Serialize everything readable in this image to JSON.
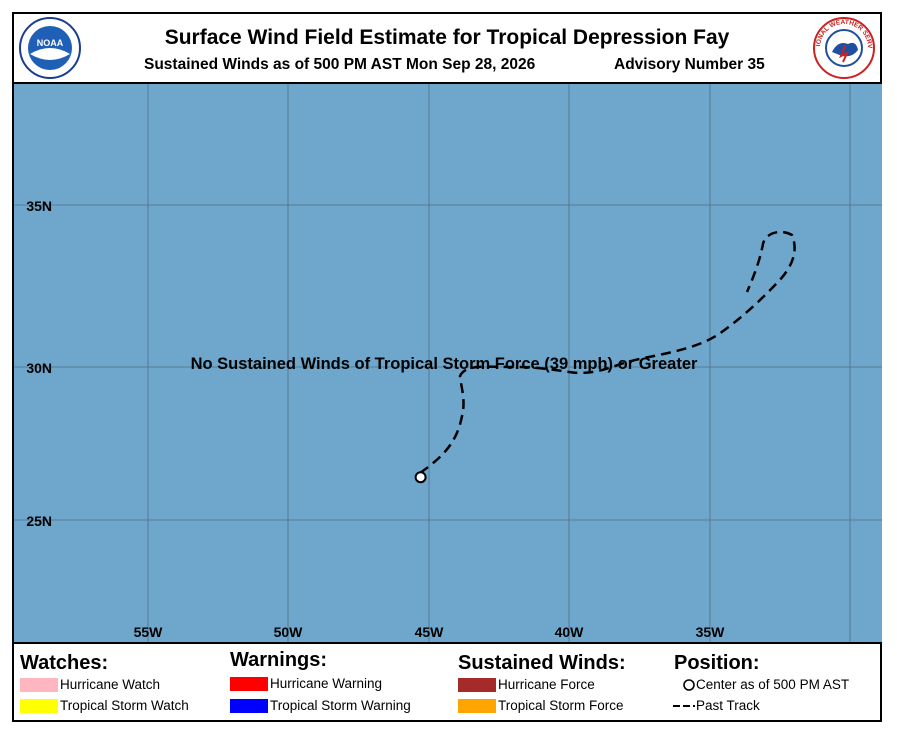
{
  "header": {
    "title": "Surface Wind Field Estimate for Tropical Depression Fay",
    "subtitle": "Sustained Winds as of 500 PM AST Mon Sep 28, 2026",
    "advisory": "Advisory Number 35",
    "noaa_logo_text": "NOAA",
    "nws_logo_text": "NATIONAL WEATHER SERVICE"
  },
  "map": {
    "ocean_color": "#6fa7cc",
    "grid_color": "#4e6f86",
    "lat_labels": [
      "35N",
      "30N",
      "25N"
    ],
    "lon_labels": [
      "55W",
      "50W",
      "45W",
      "40W",
      "35W"
    ],
    "message": "No Sustained Winds of Tropical Storm Force (39 mph) or Greater",
    "center_lat": 26.6,
    "center_lon": -45.3
  },
  "legend": {
    "watches_title": "Watches:",
    "warnings_title": "Warnings:",
    "winds_title": "Sustained Winds:",
    "position_title": "Position:",
    "hurricane_watch": "Hurricane Watch",
    "ts_watch": "Tropical Storm Watch",
    "hurricane_warning": "Hurricane Warning",
    "ts_warning": "Tropical Storm Warning",
    "hurricane_force": "Hurricane Force",
    "ts_force": "Tropical Storm Force",
    "center": "Center as of 500 PM AST",
    "past_track": "Past Track",
    "colors": {
      "hurricane_watch": "#ffb6c1",
      "ts_watch": "#ffff00",
      "hurricane_warning": "#ff0000",
      "ts_warning": "#0000ff",
      "hurricane_force": "#a52a2a",
      "ts_force": "#ffa500"
    }
  }
}
